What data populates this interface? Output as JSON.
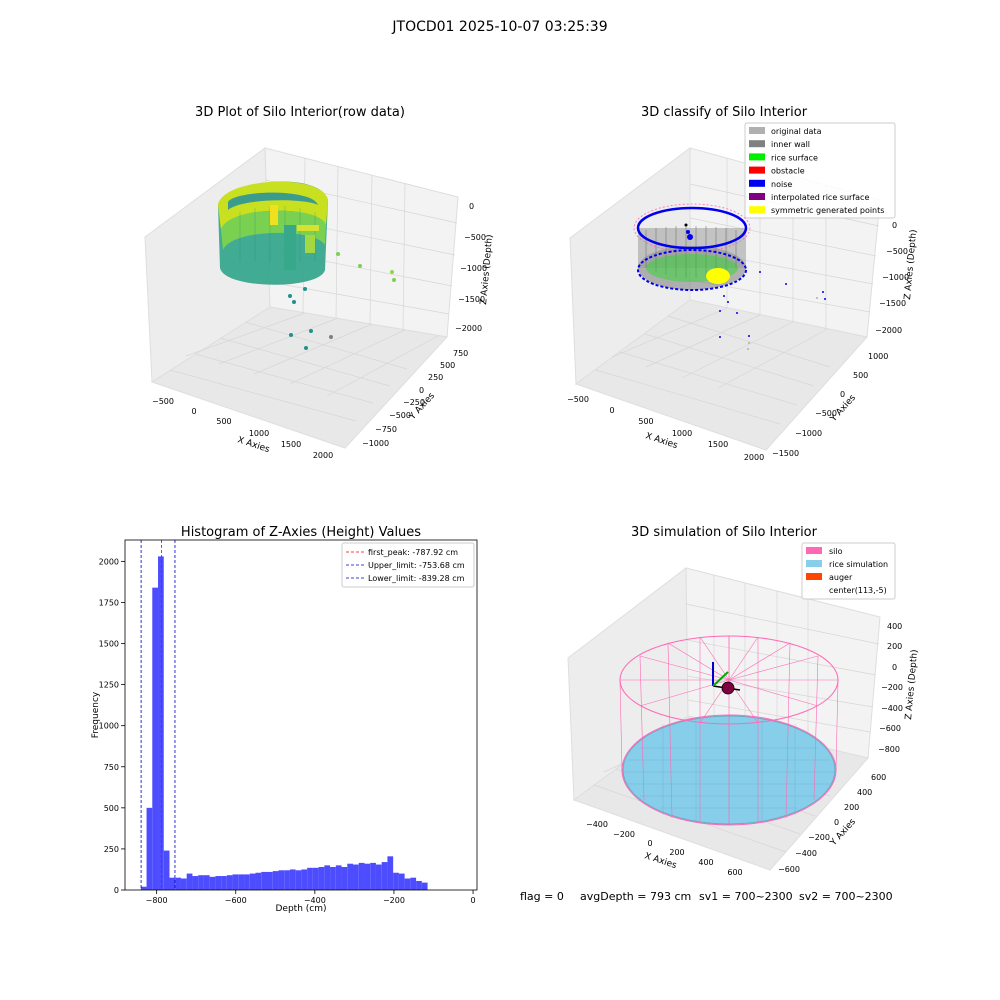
{
  "figure": {
    "suptitle": "JTOCD01 2025-10-07 03:25:39",
    "footer": {
      "flag": "flag = 0",
      "avg_depth": "avgDepth = 793 cm",
      "sv1": "sv1 = 700~2300",
      "sv2": "sv2 = 700~2300"
    }
  },
  "colors": {
    "hist_bar": "#4d4dff",
    "first_peak_line": "#ff0000",
    "limit_lines": "#0000cc",
    "silo": "#ff69b4",
    "rice_simulation": "#87ceeb",
    "auger": "#ff4500",
    "original_data": "#b0b0b0",
    "inner_wall": "#808080",
    "rice_surface": "#00ee00",
    "obstacle": "#ff0000",
    "noise": "#0000ee",
    "interpolated_rice_surface": "#800080",
    "symmetric_generated_points": "#ffff00"
  },
  "chart_data": [
    {
      "type": "scatter",
      "title": "3D Plot of Silo Interior(row data)",
      "xlabel": "X Axies",
      "ylabel": "Y Axies",
      "zlabel": "Z Axies (Depth)",
      "x_ticks": [
        "−500",
        "0",
        "500",
        "1000",
        "1500",
        "2000"
      ],
      "y_ticks": [
        "−1000",
        "−750",
        "−500",
        "−250",
        "0",
        "250",
        "500",
        "750"
      ],
      "z_ticks": [
        "0",
        "−500",
        "−1000",
        "−1500",
        "−2000"
      ],
      "xlim": [
        -650,
        2150
      ],
      "ylim": [
        -1100,
        800
      ],
      "zlim": [
        -2200,
        0
      ],
      "colormap": "viridis",
      "scattered_points": [
        {
          "x": 900,
          "y": 600,
          "z": -900
        },
        {
          "x": 1400,
          "y": 500,
          "z": -1050
        },
        {
          "x": 1600,
          "y": 450,
          "z": -1100
        },
        {
          "x": 1600,
          "y": 420,
          "z": -1150
        },
        {
          "x": 700,
          "y": -200,
          "z": -1500
        },
        {
          "x": 600,
          "y": -300,
          "z": -1700
        },
        {
          "x": 650,
          "y": -500,
          "z": -1900
        },
        {
          "x": 900,
          "y": -400,
          "z": -2000
        }
      ]
    },
    {
      "type": "scatter",
      "title": "3D classify of Silo Interior",
      "xlabel": "X Axies",
      "ylabel": "Y Axies",
      "zlabel": "Z Axies (Depth)",
      "x_ticks": [
        "−500",
        "0",
        "500",
        "1000",
        "1500",
        "2000"
      ],
      "y_ticks": [
        "−1500",
        "−1000",
        "−500",
        "0",
        "500",
        "1000"
      ],
      "z_ticks": [
        "0",
        "−500",
        "−1000",
        "−1500",
        "−2000"
      ],
      "legend_position": "top-right",
      "legend": [
        {
          "label": "original data",
          "color": "#b0b0b0"
        },
        {
          "label": "inner wall",
          "color": "#808080"
        },
        {
          "label": "rice surface",
          "color": "#00ee00"
        },
        {
          "label": "obstacle",
          "color": "#ff0000"
        },
        {
          "label": "noise",
          "color": "#0000ee"
        },
        {
          "label": "interpolated rice surface",
          "color": "#800080"
        },
        {
          "label": "symmetric generated points",
          "color": "#ffff00"
        }
      ]
    },
    {
      "type": "bar",
      "title": "Histogram of Z-Axies (Height) Values",
      "xlabel": "Depth (cm)",
      "ylabel": "Frequency",
      "xlim": [
        -880,
        10
      ],
      "ylim": [
        0,
        2130
      ],
      "x_ticks": [
        -800,
        -600,
        -400,
        -200,
        0
      ],
      "x_tick_labels": [
        "−800",
        "−600",
        "−400",
        "−200",
        "0"
      ],
      "y_ticks": [
        0,
        250,
        500,
        750,
        1000,
        1250,
        1500,
        1750,
        2000
      ],
      "y_tick_labels": [
        "0",
        "250",
        "500",
        "750",
        "1000",
        "1250",
        "1500",
        "1750",
        "2000"
      ],
      "bin_start": -840,
      "bin_width": 14.5,
      "values": [
        20,
        500,
        1840,
        2030,
        240,
        75,
        75,
        70,
        100,
        85,
        90,
        90,
        80,
        85,
        85,
        90,
        95,
        95,
        95,
        100,
        105,
        110,
        110,
        115,
        120,
        120,
        125,
        120,
        125,
        135,
        135,
        140,
        150,
        140,
        150,
        140,
        160,
        155,
        165,
        160,
        165,
        155,
        170,
        205,
        105,
        100,
        70,
        75,
        55,
        45
      ],
      "vlines": [
        {
          "label": "first_peak: -787.92 cm",
          "x": -787.92,
          "color": "#ff0000"
        },
        {
          "label": "Upper_limit: -753.68 cm",
          "x": -753.68,
          "color": "#0000cc"
        },
        {
          "label": "Lower_limit: -839.28 cm",
          "x": -839.28,
          "color": "#0000cc"
        }
      ],
      "legend_position": "top-right"
    },
    {
      "type": "surface",
      "title": "3D simulation of Silo Interior",
      "xlabel": "X Axies",
      "ylabel": "Y Axies",
      "zlabel": "Z Axies (Depth)",
      "x_ticks": [
        "−400",
        "−200",
        "0",
        "200",
        "400",
        "600"
      ],
      "y_ticks": [
        "−600",
        "−400",
        "−200",
        "0",
        "200",
        "400",
        "600"
      ],
      "z_ticks": [
        "400",
        "200",
        "0",
        "−200",
        "−400",
        "−600",
        "−800"
      ],
      "legend_position": "top-right",
      "legend": [
        {
          "label": "silo",
          "color": "#ff69b4"
        },
        {
          "label": "rice simulation",
          "color": "#87ceeb"
        },
        {
          "label": "auger",
          "color": "#ff4500"
        },
        {
          "label": "center(113,-5)",
          "color": ""
        }
      ]
    }
  ]
}
